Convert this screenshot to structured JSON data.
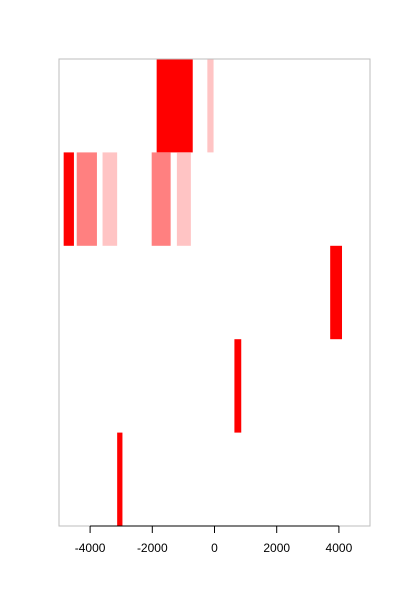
{
  "chart_data": {
    "type": "bar",
    "title": "",
    "xlabel": "",
    "ylabel": "",
    "xlim": [
      -5000,
      5000
    ],
    "grid": false,
    "x_ticks": [
      -4000,
      -2000,
      0,
      2000,
      4000
    ],
    "x_tick_labels": [
      "-4000",
      "-2000",
      "0",
      "2000",
      "4000"
    ],
    "rows": 5,
    "colors": {
      "strong": "#ff0000",
      "medium": "#ff8080",
      "light": "#ffc4c4",
      "axis": "#000000",
      "box": "#bdbdbd"
    },
    "bars": [
      {
        "row": 1,
        "from": -1860,
        "to": -700,
        "color": "strong"
      },
      {
        "row": 1,
        "from": -230,
        "to": -30,
        "color": "light"
      },
      {
        "row": 2,
        "from": -4850,
        "to": -4520,
        "color": "strong"
      },
      {
        "row": 2,
        "from": -4430,
        "to": -3780,
        "color": "medium"
      },
      {
        "row": 2,
        "from": -3600,
        "to": -3130,
        "color": "light"
      },
      {
        "row": 2,
        "from": -2020,
        "to": -1410,
        "color": "medium"
      },
      {
        "row": 2,
        "from": -1210,
        "to": -760,
        "color": "light"
      },
      {
        "row": 3,
        "from": 3720,
        "to": 4100,
        "color": "strong"
      },
      {
        "row": 4,
        "from": 640,
        "to": 860,
        "color": "strong"
      },
      {
        "row": 5,
        "from": -3130,
        "to": -2960,
        "color": "strong"
      }
    ]
  }
}
